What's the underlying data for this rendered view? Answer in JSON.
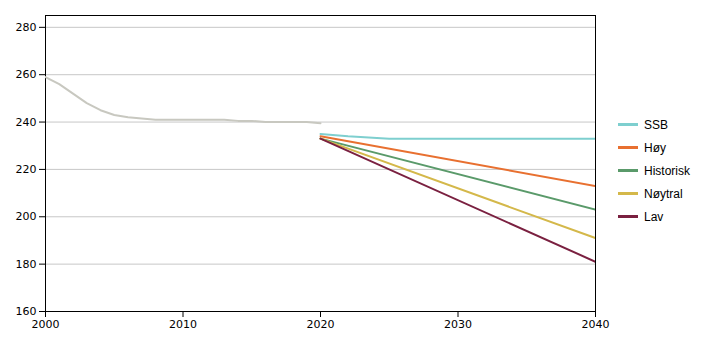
{
  "chart_data": {
    "type": "line",
    "series": [
      {
        "color": "#c8c8c0",
        "x": [
          2000,
          2001,
          2002,
          2003,
          2004,
          2005,
          2006,
          2007,
          2008,
          2009,
          2010,
          2011,
          2012,
          2013,
          2014,
          2015,
          2016,
          2017,
          2018,
          2019,
          2020
        ],
        "values": [
          259,
          256,
          252,
          248,
          245,
          243,
          242,
          241.5,
          241,
          241,
          241,
          241,
          241,
          241,
          240.5,
          240.5,
          240,
          240,
          240,
          240,
          239.5
        ]
      },
      {
        "name": "SSB",
        "color": "#7ecfcf",
        "x": [
          2020,
          2022,
          2025,
          2030,
          2035,
          2040
        ],
        "values": [
          235,
          234,
          233,
          233,
          233,
          233
        ]
      },
      {
        "name": "Høy",
        "color": "#e87030",
        "x": [
          2020,
          2040
        ],
        "values": [
          234,
          213
        ]
      },
      {
        "name": "Historisk",
        "color": "#5a9a6a",
        "x": [
          2020,
          2040
        ],
        "values": [
          233,
          203
        ]
      },
      {
        "name": "Nøytral",
        "color": "#d4b84a",
        "x": [
          2020,
          2040
        ],
        "values": [
          233,
          191
        ]
      },
      {
        "name": "Lav",
        "color": "#7a2040",
        "x": [
          2020,
          2040
        ],
        "values": [
          233,
          181
        ]
      }
    ],
    "xlim": [
      2000,
      2040
    ],
    "xticks": [
      2000,
      2010,
      2020,
      2030,
      2040
    ],
    "ylim": [
      160,
      285
    ],
    "yticks": [
      160,
      180,
      200,
      220,
      240,
      260,
      280
    ],
    "grid": "y",
    "legend": "right"
  }
}
